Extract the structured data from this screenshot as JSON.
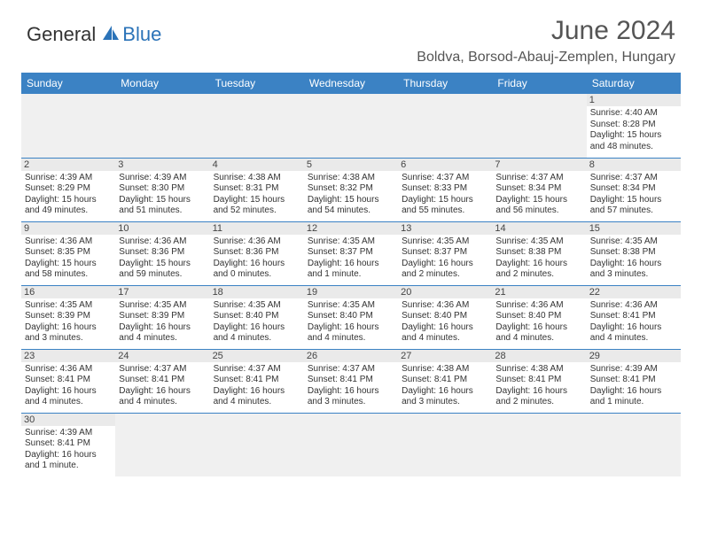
{
  "logo": {
    "text_dark": "General",
    "text_blue": "Blue"
  },
  "title": "June 2024",
  "location": "Boldva, Borsod-Abauj-Zemplen, Hungary",
  "colors": {
    "header_bg": "#3b82c4",
    "header_text": "#ffffff",
    "border": "#3b82c4",
    "daynum_bg": "#eaeaea",
    "empty_bg": "#f0f0f0",
    "title_color": "#555555",
    "body_text": "#333333"
  },
  "day_headers": [
    "Sunday",
    "Monday",
    "Tuesday",
    "Wednesday",
    "Thursday",
    "Friday",
    "Saturday"
  ],
  "weeks": [
    [
      null,
      null,
      null,
      null,
      null,
      null,
      {
        "n": "1",
        "sunrise": "4:40 AM",
        "sunset": "8:28 PM",
        "daylight": "15 hours and 48 minutes."
      }
    ],
    [
      {
        "n": "2",
        "sunrise": "4:39 AM",
        "sunset": "8:29 PM",
        "daylight": "15 hours and 49 minutes."
      },
      {
        "n": "3",
        "sunrise": "4:39 AM",
        "sunset": "8:30 PM",
        "daylight": "15 hours and 51 minutes."
      },
      {
        "n": "4",
        "sunrise": "4:38 AM",
        "sunset": "8:31 PM",
        "daylight": "15 hours and 52 minutes."
      },
      {
        "n": "5",
        "sunrise": "4:38 AM",
        "sunset": "8:32 PM",
        "daylight": "15 hours and 54 minutes."
      },
      {
        "n": "6",
        "sunrise": "4:37 AM",
        "sunset": "8:33 PM",
        "daylight": "15 hours and 55 minutes."
      },
      {
        "n": "7",
        "sunrise": "4:37 AM",
        "sunset": "8:34 PM",
        "daylight": "15 hours and 56 minutes."
      },
      {
        "n": "8",
        "sunrise": "4:37 AM",
        "sunset": "8:34 PM",
        "daylight": "15 hours and 57 minutes."
      }
    ],
    [
      {
        "n": "9",
        "sunrise": "4:36 AM",
        "sunset": "8:35 PM",
        "daylight": "15 hours and 58 minutes."
      },
      {
        "n": "10",
        "sunrise": "4:36 AM",
        "sunset": "8:36 PM",
        "daylight": "15 hours and 59 minutes."
      },
      {
        "n": "11",
        "sunrise": "4:36 AM",
        "sunset": "8:36 PM",
        "daylight": "16 hours and 0 minutes."
      },
      {
        "n": "12",
        "sunrise": "4:35 AM",
        "sunset": "8:37 PM",
        "daylight": "16 hours and 1 minute."
      },
      {
        "n": "13",
        "sunrise": "4:35 AM",
        "sunset": "8:37 PM",
        "daylight": "16 hours and 2 minutes."
      },
      {
        "n": "14",
        "sunrise": "4:35 AM",
        "sunset": "8:38 PM",
        "daylight": "16 hours and 2 minutes."
      },
      {
        "n": "15",
        "sunrise": "4:35 AM",
        "sunset": "8:38 PM",
        "daylight": "16 hours and 3 minutes."
      }
    ],
    [
      {
        "n": "16",
        "sunrise": "4:35 AM",
        "sunset": "8:39 PM",
        "daylight": "16 hours and 3 minutes."
      },
      {
        "n": "17",
        "sunrise": "4:35 AM",
        "sunset": "8:39 PM",
        "daylight": "16 hours and 4 minutes."
      },
      {
        "n": "18",
        "sunrise": "4:35 AM",
        "sunset": "8:40 PM",
        "daylight": "16 hours and 4 minutes."
      },
      {
        "n": "19",
        "sunrise": "4:35 AM",
        "sunset": "8:40 PM",
        "daylight": "16 hours and 4 minutes."
      },
      {
        "n": "20",
        "sunrise": "4:36 AM",
        "sunset": "8:40 PM",
        "daylight": "16 hours and 4 minutes."
      },
      {
        "n": "21",
        "sunrise": "4:36 AM",
        "sunset": "8:40 PM",
        "daylight": "16 hours and 4 minutes."
      },
      {
        "n": "22",
        "sunrise": "4:36 AM",
        "sunset": "8:41 PM",
        "daylight": "16 hours and 4 minutes."
      }
    ],
    [
      {
        "n": "23",
        "sunrise": "4:36 AM",
        "sunset": "8:41 PM",
        "daylight": "16 hours and 4 minutes."
      },
      {
        "n": "24",
        "sunrise": "4:37 AM",
        "sunset": "8:41 PM",
        "daylight": "16 hours and 4 minutes."
      },
      {
        "n": "25",
        "sunrise": "4:37 AM",
        "sunset": "8:41 PM",
        "daylight": "16 hours and 4 minutes."
      },
      {
        "n": "26",
        "sunrise": "4:37 AM",
        "sunset": "8:41 PM",
        "daylight": "16 hours and 3 minutes."
      },
      {
        "n": "27",
        "sunrise": "4:38 AM",
        "sunset": "8:41 PM",
        "daylight": "16 hours and 3 minutes."
      },
      {
        "n": "28",
        "sunrise": "4:38 AM",
        "sunset": "8:41 PM",
        "daylight": "16 hours and 2 minutes."
      },
      {
        "n": "29",
        "sunrise": "4:39 AM",
        "sunset": "8:41 PM",
        "daylight": "16 hours and 1 minute."
      }
    ],
    [
      {
        "n": "30",
        "sunrise": "4:39 AM",
        "sunset": "8:41 PM",
        "daylight": "16 hours and 1 minute."
      },
      null,
      null,
      null,
      null,
      null,
      null
    ]
  ],
  "labels": {
    "sunrise": "Sunrise:",
    "sunset": "Sunset:",
    "daylight": "Daylight:"
  }
}
